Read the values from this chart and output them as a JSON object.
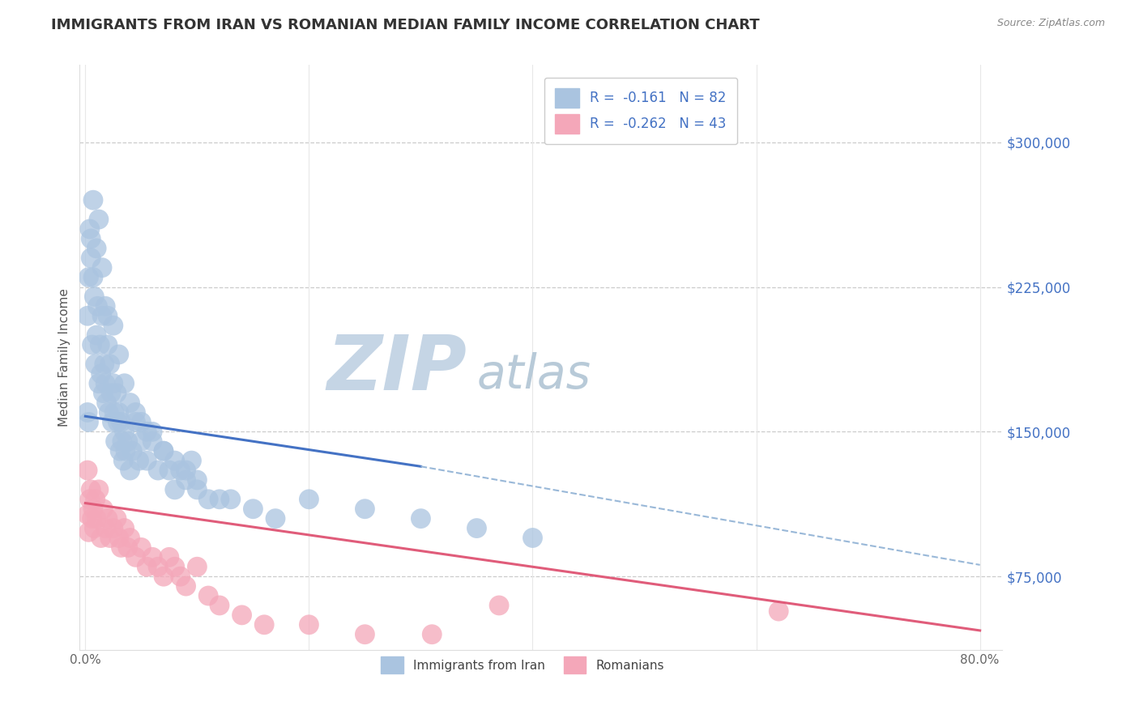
{
  "title": "IMMIGRANTS FROM IRAN VS ROMANIAN MEDIAN FAMILY INCOME CORRELATION CHART",
  "source_text": "Source: ZipAtlas.com",
  "ylabel": "Median Family Income",
  "xlim": [
    -0.005,
    0.82
  ],
  "ylim": [
    37000,
    340000
  ],
  "xtick_labels": [
    "0.0%",
    "",
    "",
    "",
    "80.0%"
  ],
  "xtick_vals": [
    0.0,
    0.2,
    0.4,
    0.6,
    0.8
  ],
  "ytick_vals": [
    75000,
    150000,
    225000,
    300000
  ],
  "ytick_labels": [
    "$75,000",
    "$150,000",
    "$225,000",
    "$300,000"
  ],
  "iran_dot_color": "#aac4e0",
  "iran_line_color": "#4472c4",
  "romanian_dot_color": "#f4a7b9",
  "romanian_line_color": "#e05c7a",
  "dashed_line_color": "#99b8d8",
  "grid_color": "#e8e8e8",
  "grid_dashed_color": "#cccccc",
  "background_color": "#ffffff",
  "watermark_zip_color": "#c5d5e5",
  "watermark_atlas_color": "#b8cad8",
  "title_color": "#333333",
  "source_color": "#888888",
  "ylabel_color": "#555555",
  "ytick_color": "#4472c4",
  "xtick_color": "#666666",
  "legend_edge_color": "#cccccc",
  "legend_iran_patch": "#aac4e0",
  "legend_romanian_patch": "#f4a7b9",
  "legend_text_color": "#333333",
  "legend_value_color": "#4472c4",
  "iran_scatter_x": [
    0.002,
    0.004,
    0.005,
    0.006,
    0.007,
    0.008,
    0.009,
    0.01,
    0.011,
    0.012,
    0.013,
    0.014,
    0.015,
    0.016,
    0.017,
    0.018,
    0.019,
    0.02,
    0.021,
    0.022,
    0.023,
    0.024,
    0.025,
    0.026,
    0.027,
    0.028,
    0.029,
    0.03,
    0.031,
    0.032,
    0.033,
    0.034,
    0.035,
    0.036,
    0.038,
    0.04,
    0.042,
    0.045,
    0.048,
    0.05,
    0.055,
    0.06,
    0.065,
    0.07,
    0.075,
    0.08,
    0.085,
    0.09,
    0.095,
    0.1,
    0.003,
    0.005,
    0.007,
    0.01,
    0.012,
    0.015,
    0.018,
    0.02,
    0.025,
    0.03,
    0.035,
    0.04,
    0.045,
    0.05,
    0.055,
    0.06,
    0.07,
    0.08,
    0.09,
    0.1,
    0.11,
    0.12,
    0.13,
    0.15,
    0.17,
    0.2,
    0.25,
    0.3,
    0.35,
    0.4,
    0.002,
    0.003
  ],
  "iran_scatter_y": [
    210000,
    255000,
    240000,
    195000,
    230000,
    220000,
    185000,
    200000,
    215000,
    175000,
    195000,
    180000,
    210000,
    170000,
    185000,
    175000,
    165000,
    195000,
    160000,
    185000,
    170000,
    155000,
    175000,
    160000,
    145000,
    170000,
    155000,
    160000,
    140000,
    155000,
    145000,
    135000,
    150000,
    140000,
    145000,
    130000,
    140000,
    155000,
    135000,
    145000,
    135000,
    150000,
    130000,
    140000,
    130000,
    120000,
    130000,
    125000,
    135000,
    125000,
    230000,
    250000,
    270000,
    245000,
    260000,
    235000,
    215000,
    210000,
    205000,
    190000,
    175000,
    165000,
    160000,
    155000,
    150000,
    145000,
    140000,
    135000,
    130000,
    120000,
    115000,
    115000,
    115000,
    110000,
    105000,
    115000,
    110000,
    105000,
    100000,
    95000,
    160000,
    155000
  ],
  "romanian_scatter_x": [
    0.002,
    0.004,
    0.005,
    0.006,
    0.007,
    0.008,
    0.009,
    0.01,
    0.012,
    0.014,
    0.016,
    0.018,
    0.02,
    0.022,
    0.025,
    0.028,
    0.03,
    0.032,
    0.035,
    0.038,
    0.04,
    0.045,
    0.05,
    0.055,
    0.06,
    0.065,
    0.07,
    0.075,
    0.08,
    0.085,
    0.09,
    0.1,
    0.11,
    0.12,
    0.14,
    0.16,
    0.2,
    0.25,
    0.31,
    0.37,
    0.62,
    0.002,
    0.003
  ],
  "romanian_scatter_y": [
    130000,
    115000,
    120000,
    105000,
    110000,
    100000,
    115000,
    105000,
    120000,
    95000,
    110000,
    100000,
    105000,
    95000,
    100000,
    105000,
    95000,
    90000,
    100000,
    90000,
    95000,
    85000,
    90000,
    80000,
    85000,
    80000,
    75000,
    85000,
    80000,
    75000,
    70000,
    80000,
    65000,
    60000,
    55000,
    50000,
    50000,
    45000,
    45000,
    60000,
    57000,
    107000,
    98000
  ],
  "iran_line_x0": 0.0,
  "iran_line_x1": 0.3,
  "iran_line_y0": 158000,
  "iran_line_y1": 132000,
  "dashed_line_x0": 0.3,
  "dashed_line_x1": 0.8,
  "dashed_line_y0": 132000,
  "dashed_line_y1": 81000,
  "romanian_line_x0": 0.0,
  "romanian_line_x1": 0.8,
  "romanian_line_y0": 113000,
  "romanian_line_y1": 47000
}
